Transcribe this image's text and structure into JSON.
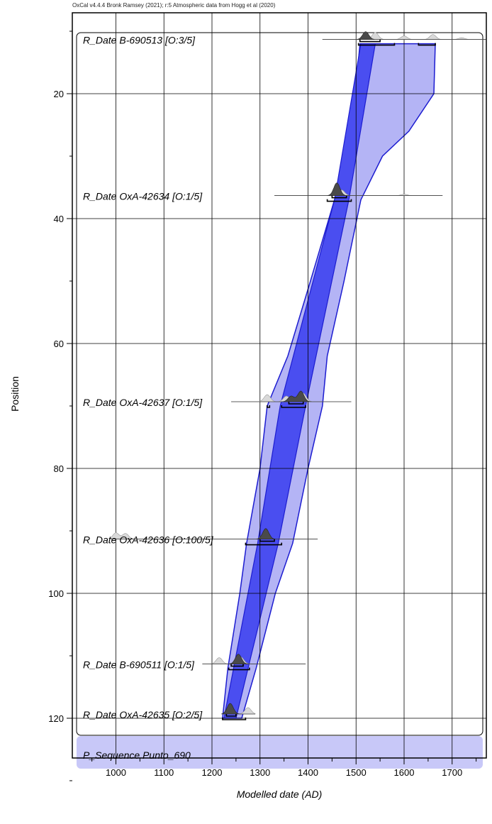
{
  "header": "OxCal v4.4.4 Bronk Ramsey (2021); r:5 Atmospheric data from Hogg et al (2020)",
  "chart_data": {
    "type": "area",
    "title": "",
    "xlabel": "Modelled date (AD)",
    "ylabel": "Position",
    "xlim": [
      920,
      1770
    ],
    "ylim": [
      130,
      8
    ],
    "x_ticks": [
      1000,
      1100,
      1200,
      1300,
      1400,
      1500,
      1600,
      1700
    ],
    "y_ticks": [
      20,
      40,
      60,
      80,
      100,
      120
    ],
    "grid": true,
    "sequence_label": "P_Sequence Punto_690",
    "dates": [
      {
        "label": "R_Date B-690513 [O:3/5]",
        "position": 12,
        "prior_range": [
          1430,
          1770
        ],
        "peaks_prior": [
          [
            1540,
            0.5
          ],
          [
            1600,
            0.25
          ],
          [
            1660,
            0.35
          ],
          [
            1720,
            0.12
          ]
        ],
        "peaks_post": [
          [
            1520,
            0.55
          ]
        ],
        "range68": [
          [
            1508,
            1550
          ]
        ],
        "range95": [
          [
            1505,
            1580
          ],
          [
            1630,
            1665
          ]
        ]
      },
      {
        "label": "R_Date OxA-42634 [O:1/5]",
        "position": 37,
        "prior_range": [
          1330,
          1680
        ],
        "peaks_prior": [
          [
            1470,
            0.4
          ],
          [
            1600,
            0.1
          ]
        ],
        "peaks_post": [
          [
            1460,
            0.9
          ]
        ],
        "range68": [
          [
            1450,
            1480
          ]
        ],
        "range95": [
          [
            1440,
            1490
          ]
        ]
      },
      {
        "label": "R_Date OxA-42637 [O:1/5]",
        "position": 70,
        "prior_range": [
          1240,
          1490
        ],
        "peaks_prior": [
          [
            1315,
            0.5
          ],
          [
            1355,
            0.4
          ],
          [
            1390,
            0.6
          ]
        ],
        "peaks_post": [
          [
            1385,
            0.75
          ],
          [
            1365,
            0.4
          ]
        ],
        "range68": [
          [
            1360,
            1390
          ]
        ],
        "range95": [
          [
            1315,
            1320
          ],
          [
            1345,
            1395
          ]
        ]
      },
      {
        "label": "R_Date OxA-42636 [O:100/5]",
        "position": 92,
        "prior_range": [
          990,
          1420
        ],
        "peaks_prior": [
          [
            1000,
            0.45
          ],
          [
            1020,
            0.4
          ],
          [
            1310,
            0.5
          ]
        ],
        "peaks_post": [
          [
            1312,
            0.75
          ]
        ],
        "range68": [
          [
            1300,
            1330
          ]
        ],
        "range95": [
          [
            1270,
            1345
          ]
        ]
      },
      {
        "label": "R_Date B-690511 [O:1/5]",
        "position": 112,
        "prior_range": [
          1180,
          1395
        ],
        "peaks_prior": [
          [
            1215,
            0.45
          ],
          [
            1260,
            0.5
          ]
        ],
        "peaks_post": [
          [
            1255,
            0.7
          ]
        ],
        "range68": [
          [
            1240,
            1265
          ]
        ],
        "range95": [
          [
            1235,
            1278
          ]
        ]
      },
      {
        "label": "R_Date OxA-42635 [O:2/5]",
        "position": 120,
        "prior_range": [
          1220,
          1290
        ],
        "peaks_prior": [
          [
            1275,
            0.45
          ]
        ],
        "peaks_post": [
          [
            1238,
            0.75
          ]
        ],
        "range68": [
          [
            1230,
            1250
          ]
        ],
        "range95": [
          [
            1222,
            1270
          ]
        ]
      }
    ],
    "envelope_95": {
      "left": [
        [
          12,
          1508
        ],
        [
          20,
          1499
        ],
        [
          30,
          1485
        ],
        [
          37,
          1455
        ],
        [
          50,
          1405
        ],
        [
          62,
          1358
        ],
        [
          70,
          1315
        ],
        [
          80,
          1300
        ],
        [
          92,
          1272
        ],
        [
          100,
          1258
        ],
        [
          112,
          1233
        ],
        [
          120,
          1222
        ]
      ],
      "right": [
        [
          12,
          1665
        ],
        [
          20,
          1662
        ],
        [
          26,
          1610
        ],
        [
          30,
          1555
        ],
        [
          37,
          1510
        ],
        [
          50,
          1475
        ],
        [
          62,
          1440
        ],
        [
          70,
          1430
        ],
        [
          80,
          1400
        ],
        [
          92,
          1368
        ],
        [
          100,
          1332
        ],
        [
          112,
          1292
        ],
        [
          120,
          1262
        ]
      ]
    },
    "envelope_68": {
      "left": [
        [
          12,
          1510
        ],
        [
          37,
          1455
        ],
        [
          70,
          1342
        ],
        [
          92,
          1295
        ],
        [
          120,
          1225
        ]
      ],
      "right": [
        [
          12,
          1540
        ],
        [
          37,
          1485
        ],
        [
          70,
          1395
        ],
        [
          92,
          1338
        ],
        [
          120,
          1250
        ]
      ]
    },
    "colors": {
      "envelope_95": "#b4b4f5",
      "envelope_68": "#4a4ef0",
      "envelope_stroke": "#1c1cd0",
      "sequence_box": "#c8c8f8",
      "prior_dist": "#d9d9d9",
      "posterior_dist": "#4a4a4a"
    }
  }
}
